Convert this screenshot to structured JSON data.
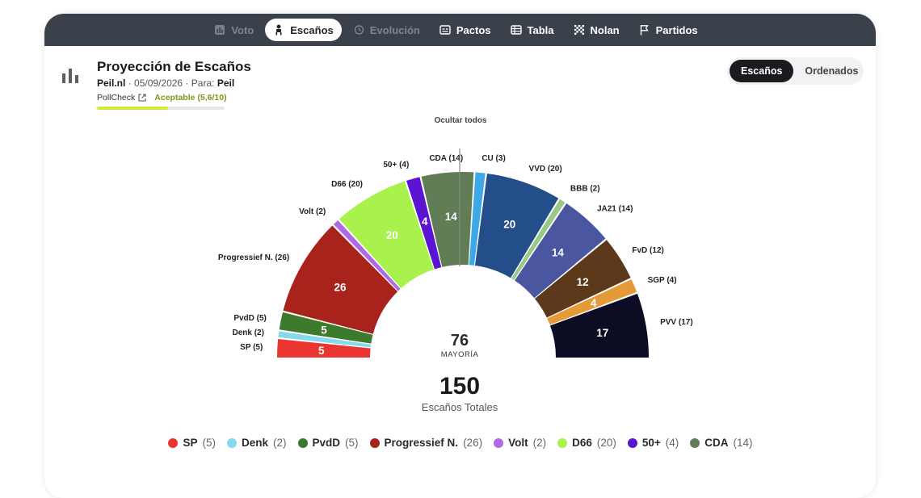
{
  "tabs": [
    {
      "label": "Voto",
      "icon": "bar-chart-icon",
      "state": "disabled"
    },
    {
      "label": "Escaños",
      "icon": "chair-icon",
      "state": "active"
    },
    {
      "label": "Evolución",
      "icon": "history-icon",
      "state": "disabled"
    },
    {
      "label": "Pactos",
      "icon": "pact-icon",
      "state": "normal"
    },
    {
      "label": "Tabla",
      "icon": "table-icon",
      "state": "normal"
    },
    {
      "label": "Nolan",
      "icon": "nolan-grid-icon",
      "state": "normal"
    },
    {
      "label": "Partidos",
      "icon": "flag-icon",
      "state": "normal"
    }
  ],
  "header": {
    "title": "Proyección de Escaños",
    "source": "Peil.nl",
    "date": "05/09/2026",
    "for_label": "Para:",
    "for_value": "Peil",
    "pollcheck_label": "PollCheck",
    "pollcheck_score": "Aceptable (5,6/10)",
    "quality_fraction": 0.56
  },
  "view_toggle": {
    "options": [
      "Escaños",
      "Ordenados"
    ],
    "selected": "Escaños"
  },
  "hide_all_label": "Ocultar todos",
  "center": {
    "majority": "76",
    "majority_label": "MAYORÍA",
    "total": "150",
    "total_label": "Escaños Totales"
  },
  "chart_data": {
    "type": "pie",
    "variant": "semicircle-parliament",
    "total_seats": 150,
    "majority": 76,
    "parties": [
      {
        "name": "SP",
        "seats": 5,
        "label": "SP (5)",
        "color": "#ea3530"
      },
      {
        "name": "Denk",
        "seats": 2,
        "label": "Denk (2)",
        "color": "#86d9ea"
      },
      {
        "name": "PvdD",
        "seats": 5,
        "label": "PvdD (5)",
        "color": "#3d7a2c"
      },
      {
        "name": "Progressief N.",
        "seats": 26,
        "label": "Progressief N. (26)",
        "color": "#a8231b"
      },
      {
        "name": "Volt",
        "seats": 2,
        "label": "Volt (2)",
        "color": "#b06ae6"
      },
      {
        "name": "D66",
        "seats": 20,
        "label": "D66 (20)",
        "color": "#a9f24e"
      },
      {
        "name": "50+",
        "seats": 4,
        "label": "50+ (4)",
        "color": "#5b14d2"
      },
      {
        "name": "CDA",
        "seats": 14,
        "label": "CDA (14)",
        "color": "#607d56"
      },
      {
        "name": "CU",
        "seats": 3,
        "label": "CU (3)",
        "color": "#3ea7e6"
      },
      {
        "name": "VVD",
        "seats": 20,
        "label": "VVD (20)",
        "color": "#244e8a"
      },
      {
        "name": "BBB",
        "seats": 2,
        "label": "BBB (2)",
        "color": "#97ca86"
      },
      {
        "name": "JA21",
        "seats": 14,
        "label": "JA21 (14)",
        "color": "#4a56a0"
      },
      {
        "name": "FvD",
        "seats": 12,
        "label": "FvD (12)",
        "color": "#5c391a"
      },
      {
        "name": "SGP",
        "seats": 4,
        "label": "SGP (4)",
        "color": "#e39a37"
      },
      {
        "name": "PVV",
        "seats": 17,
        "label": "PVV (17)",
        "color": "#0c0c24"
      }
    ]
  },
  "legend_visible_count": 8
}
